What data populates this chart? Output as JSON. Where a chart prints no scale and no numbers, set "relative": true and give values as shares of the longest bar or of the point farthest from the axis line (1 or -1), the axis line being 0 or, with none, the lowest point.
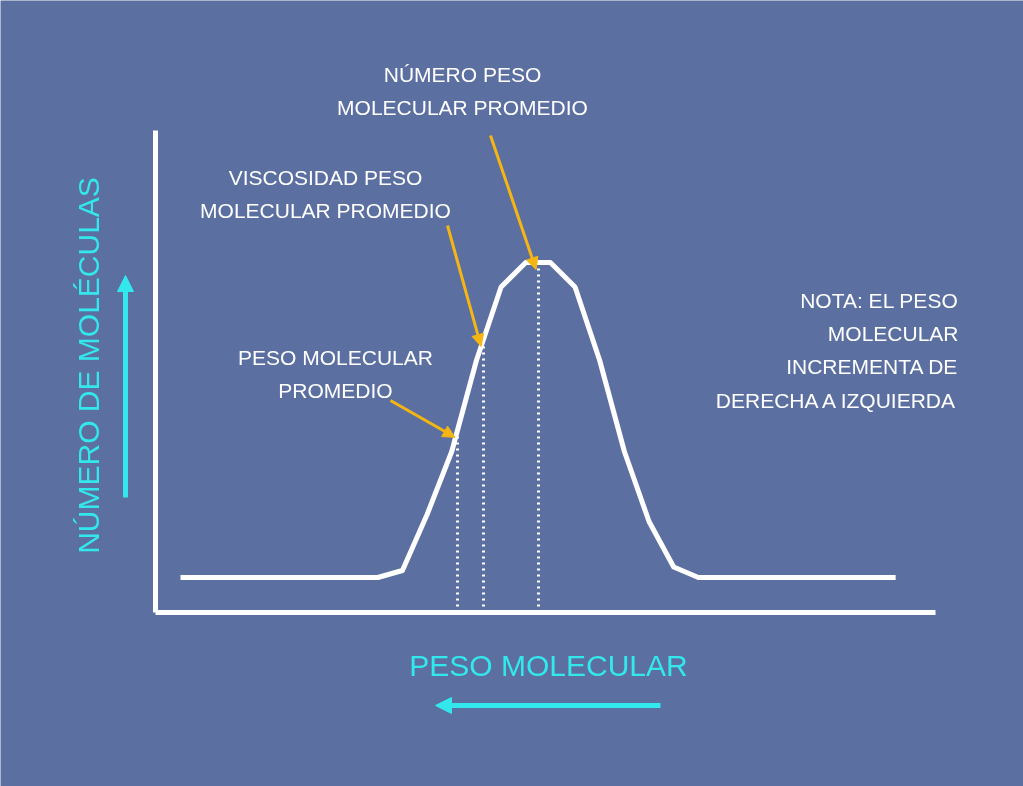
{
  "chart_data": {
    "type": "line",
    "relative": true,
    "xlabel": "PESO MOLECULAR",
    "ylabel": "NÚMERO DE MOLÉCULAS",
    "categories": [
      null,
      null,
      null,
      null,
      null,
      null,
      null,
      null,
      null,
      null,
      null,
      null,
      null,
      null,
      null,
      null,
      null,
      null,
      null,
      null,
      null,
      null,
      null,
      null,
      null,
      null,
      null,
      null,
      null,
      null
    ],
    "series": [
      {
        "color": "#ffffff",
        "values": [
          0.1,
          0.1,
          0.1,
          0.1,
          0.1,
          0.1,
          0.1,
          0.1,
          0.1,
          0.12,
          0.28,
          0.46,
          0.72,
          0.93,
          1.0,
          1.0,
          0.93,
          0.72,
          0.46,
          0.26,
          0.13,
          0.1,
          0.1,
          0.1,
          0.1,
          0.1,
          0.1,
          0.1,
          0.1,
          0.1
        ]
      }
    ],
    "annotations": [
      "NÚMERO PESO\nMOLECULAR PROMEDIO",
      "VISCOSIDAD PESO\nMOLECULAR PROMEDIO",
      "PESO MOLECULAR\nPROMEDIO",
      "NOTA: EL PESO\nMOLECULAR\nINCREMENTA DE\nDERECHA A IZQUIERDA"
    ],
    "grid": false,
    "marker": "none",
    "line_style": "solid"
  }
}
